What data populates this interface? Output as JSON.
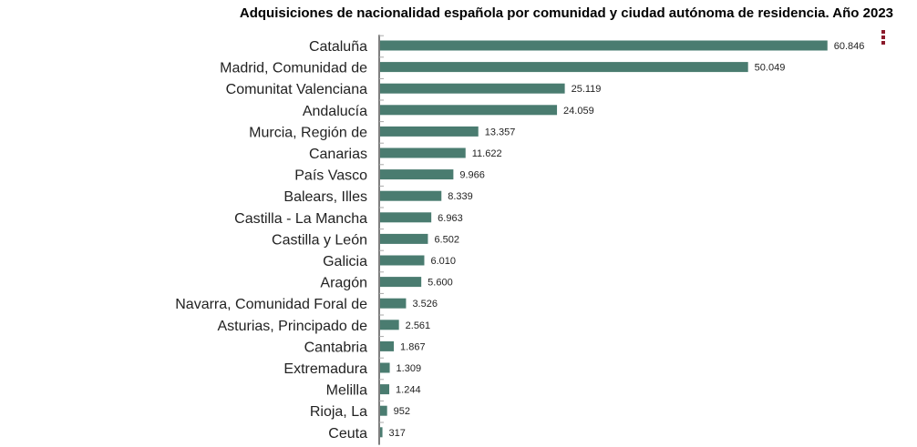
{
  "chart_data": {
    "type": "bar",
    "orientation": "horizontal",
    "title": "Adquisiciones de nacionalidad española por comunidad y ciudad autónoma de residencia. Año 2023",
    "categories": [
      "Cataluña",
      "Madrid, Comunidad de",
      "Comunitat Valenciana",
      "Andalucía",
      "Murcia, Región de",
      "Canarias",
      "País Vasco",
      "Balears, Illes",
      "Castilla - La Mancha",
      "Castilla y León",
      "Galicia",
      "Aragón",
      "Navarra, Comunidad Foral de",
      "Asturias, Principado de",
      "Cantabria",
      "Extremadura",
      "Melilla",
      "Rioja, La",
      "Ceuta"
    ],
    "values": [
      60846,
      50049,
      25119,
      24059,
      13357,
      11622,
      9966,
      8339,
      6963,
      6502,
      6010,
      5600,
      3526,
      2561,
      1867,
      1309,
      1244,
      952,
      317
    ],
    "value_labels": [
      "60.846",
      "50.049",
      "25.119",
      "24.059",
      "13.357",
      "11.622",
      "9.966",
      "8.339",
      "6.963",
      "6.502",
      "6.010",
      "5.600",
      "3.526",
      "2.561",
      "1.867",
      "1.309",
      "1.244",
      "952",
      "317"
    ],
    "xlim": [
      0,
      61000
    ],
    "grid": false,
    "legend": "none",
    "bar_color": "#4a7c70",
    "axis_color": "#555555"
  },
  "menu": {
    "icon": "vertical-dots-icon",
    "color": "#8b1a2b"
  }
}
